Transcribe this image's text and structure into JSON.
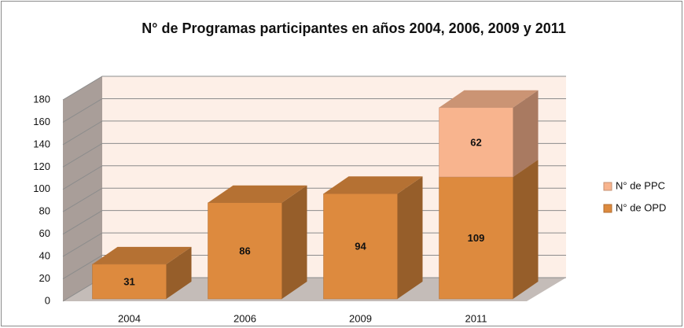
{
  "chart_data": {
    "type": "bar3d_stacked",
    "title": "N° de Programas participantes en años 2004, 2006, 2009  y 2011",
    "categories": [
      "2004",
      "2006",
      "2009",
      "2011"
    ],
    "series": [
      {
        "name": "N° de OPD",
        "color": "#dd8a3e",
        "values": [
          31,
          86,
          94,
          109
        ]
      },
      {
        "name": "N° de PPC",
        "color": "#f8b48e",
        "values": [
          null,
          null,
          null,
          62
        ]
      }
    ],
    "ylim": [
      0,
      180
    ],
    "yticks": [
      0,
      20,
      40,
      60,
      80,
      100,
      120,
      140,
      160,
      180
    ],
    "grid": true,
    "legend": "right"
  }
}
